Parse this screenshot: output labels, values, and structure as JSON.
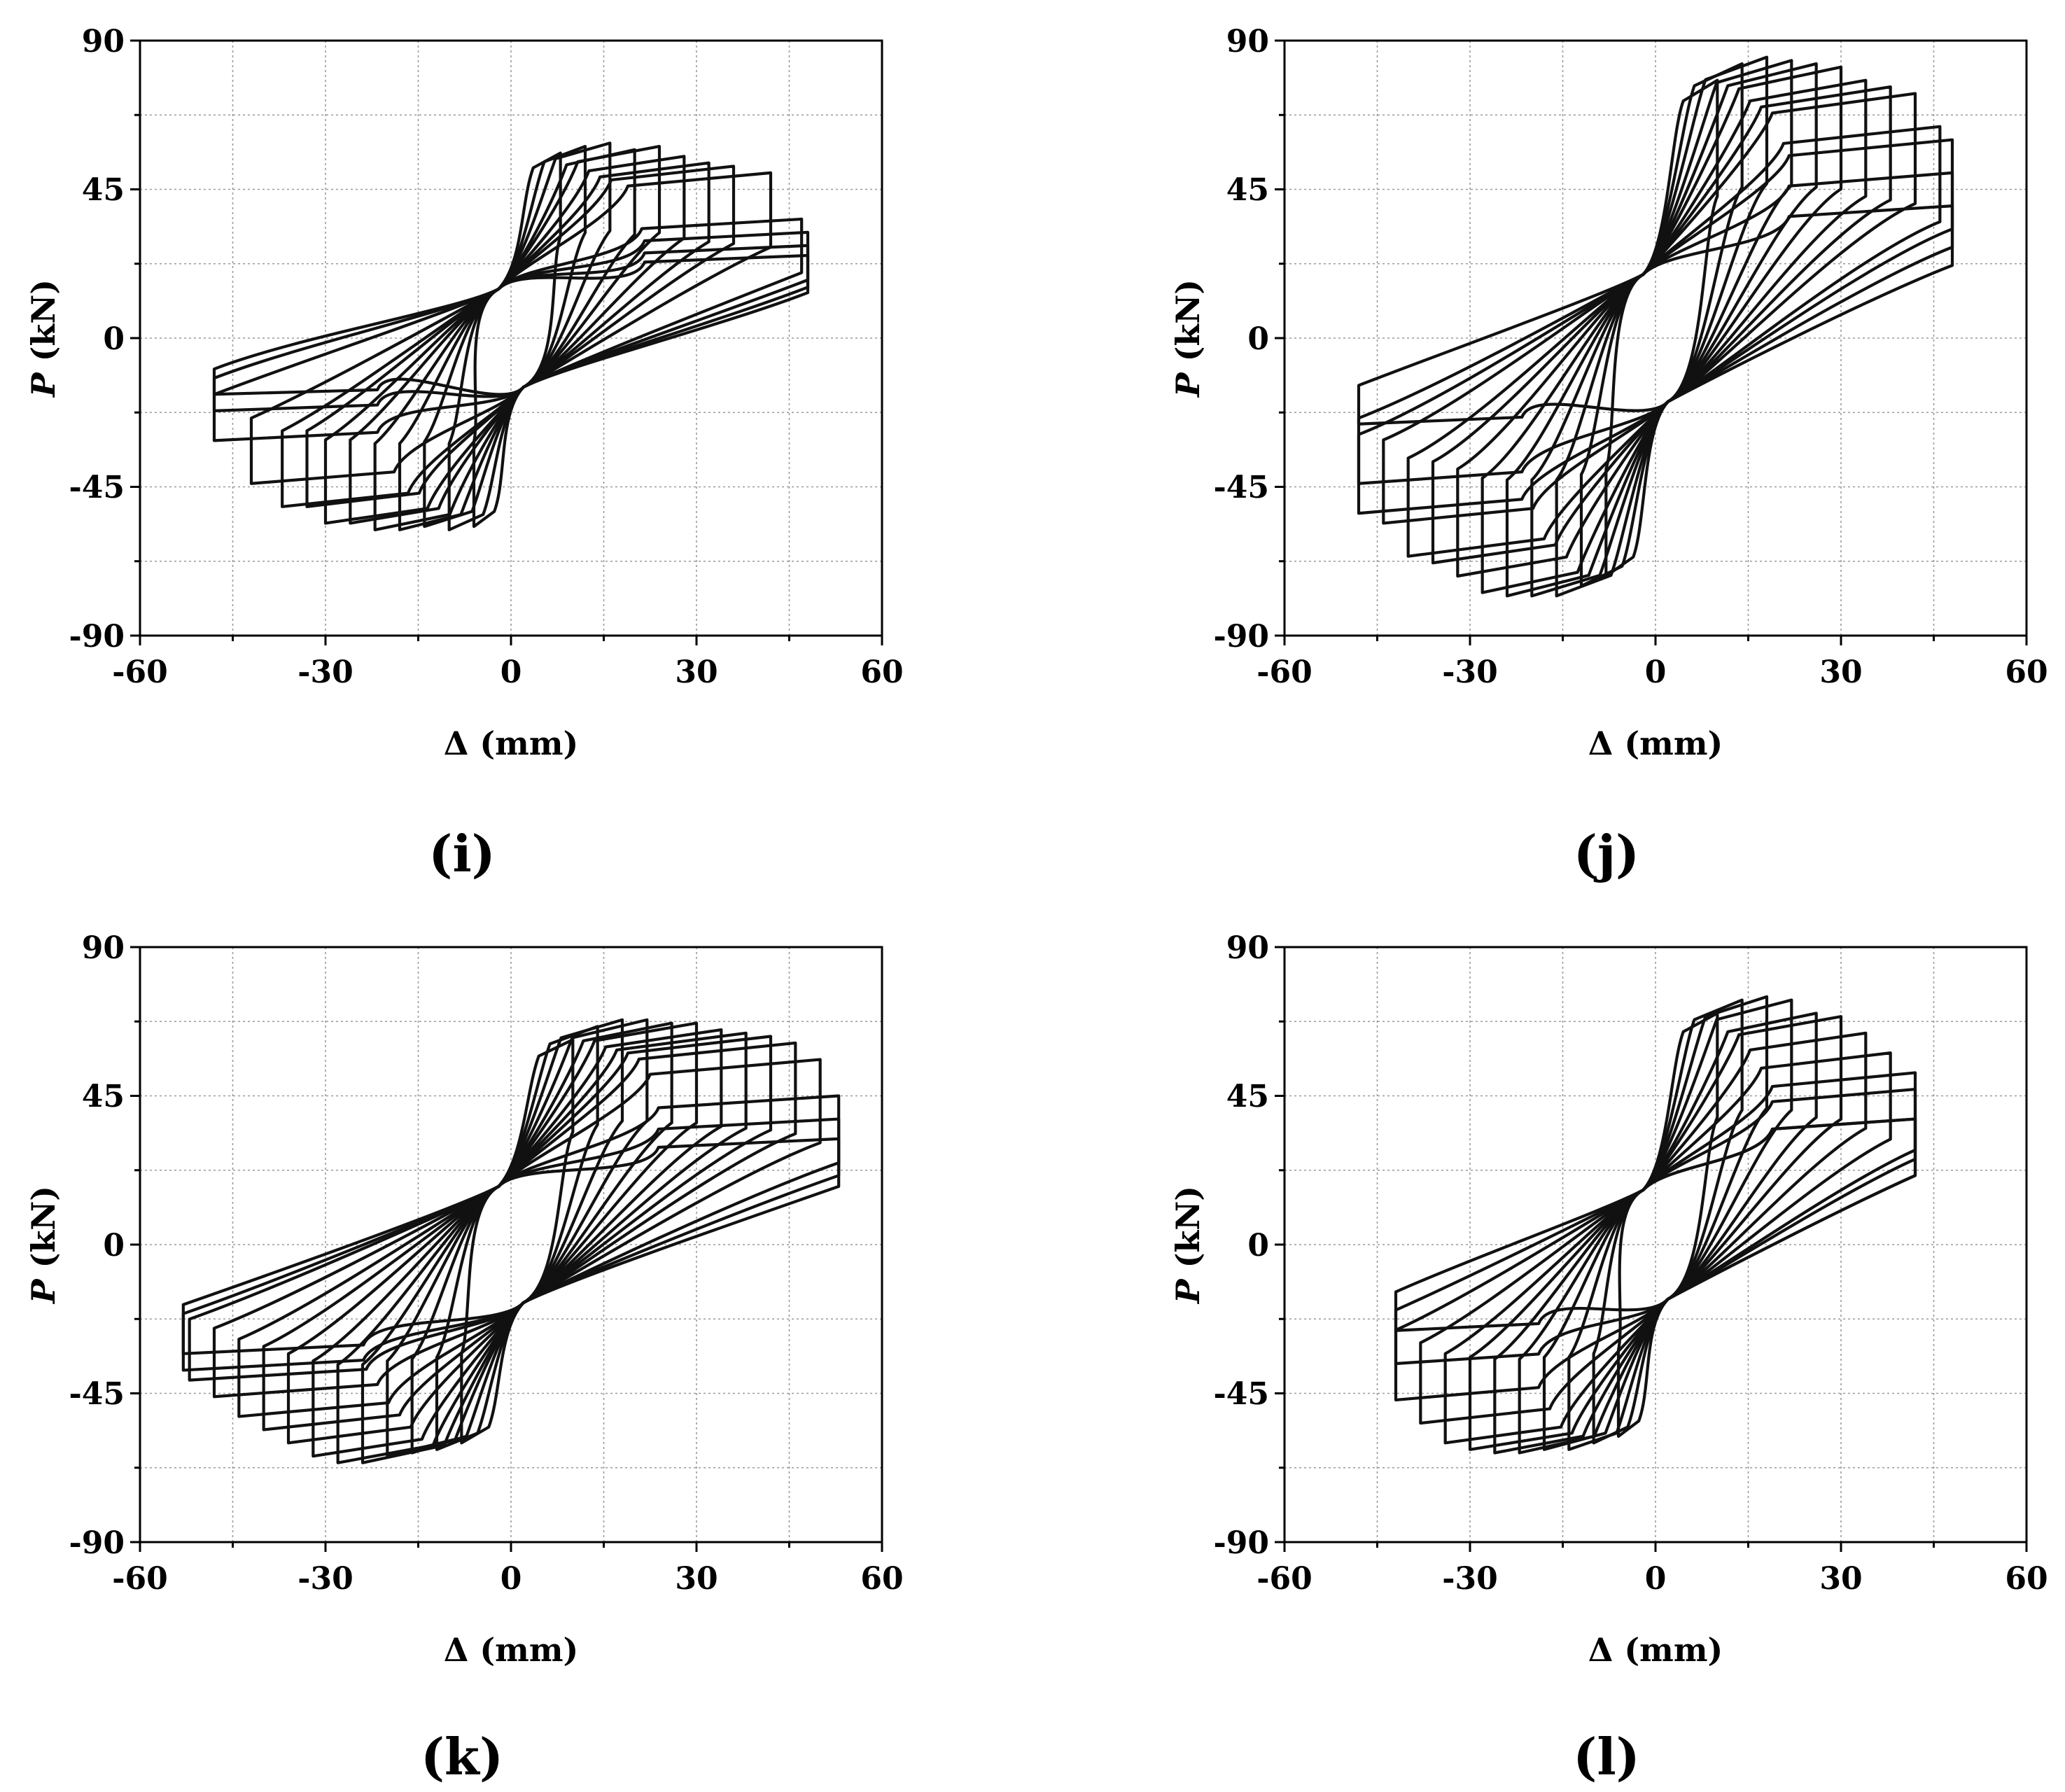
{
  "chart_data": [
    {
      "type": "line",
      "panel_label": "(i)",
      "xlabel_symbol": "Δ",
      "xlabel_unit": "(mm)",
      "ylabel_symbol": "P",
      "ylabel_unit": "(kN)",
      "xlim": [
        -60,
        60
      ],
      "ylim": [
        -90,
        90
      ],
      "xticks": [
        -60,
        -30,
        0,
        30,
        60
      ],
      "yticks": [
        -90,
        -45,
        0,
        45,
        90
      ],
      "grid": true,
      "loop_peaks": [
        [
          8,
          56
        ],
        [
          12,
          58
        ],
        [
          16,
          59
        ],
        [
          20,
          57
        ],
        [
          24,
          58
        ],
        [
          28,
          55
        ],
        [
          32,
          53
        ],
        [
          36,
          52
        ],
        [
          42,
          50
        ],
        [
          47,
          36
        ],
        [
          48,
          32
        ],
        [
          48,
          28
        ],
        [
          48,
          25
        ]
      ],
      "loop_valleys": [
        [
          -6,
          -57
        ],
        [
          -10,
          -58
        ],
        [
          -14,
          -57
        ],
        [
          -18,
          -58
        ],
        [
          -22,
          -58
        ],
        [
          -26,
          -56
        ],
        [
          -30,
          -56
        ],
        [
          -33,
          -51
        ],
        [
          -37,
          -51
        ],
        [
          -42,
          -44
        ],
        [
          -48,
          -31
        ],
        [
          -48,
          -22
        ],
        [
          -48,
          -17
        ]
      ],
      "reload_intercept": 27
    },
    {
      "type": "line",
      "panel_label": "(j)",
      "xlabel_symbol": "Δ",
      "xlabel_unit": "(mm)",
      "ylabel_symbol": "P",
      "ylabel_unit": "(kN)",
      "xlim": [
        -60,
        60
      ],
      "ylim": [
        -90,
        90
      ],
      "xticks": [
        -60,
        -30,
        0,
        30,
        60
      ],
      "yticks": [
        -90,
        -45,
        0,
        45,
        90
      ],
      "grid": true,
      "loop_peaks": [
        [
          10,
          78
        ],
        [
          14,
          83
        ],
        [
          18,
          85
        ],
        [
          22,
          84
        ],
        [
          26,
          83
        ],
        [
          30,
          82
        ],
        [
          34,
          78
        ],
        [
          38,
          76
        ],
        [
          42,
          74
        ],
        [
          46,
          64
        ],
        [
          48,
          60
        ],
        [
          48,
          50
        ],
        [
          48,
          40
        ]
      ],
      "loop_valleys": [
        [
          -8,
          -72
        ],
        [
          -12,
          -75
        ],
        [
          -16,
          -78
        ],
        [
          -20,
          -78
        ],
        [
          -24,
          -78
        ],
        [
          -28,
          -77
        ],
        [
          -32,
          -72
        ],
        [
          -36,
          -68
        ],
        [
          -40,
          -66
        ],
        [
          -44,
          -56
        ],
        [
          -48,
          -53
        ],
        [
          -48,
          -44
        ],
        [
          -48,
          -26
        ]
      ],
      "reload_intercept": 35
    },
    {
      "type": "line",
      "panel_label": "(k)",
      "xlabel_symbol": "Δ",
      "xlabel_unit": "(mm)",
      "ylabel_symbol": "P",
      "ylabel_unit": "(kN)",
      "xlim": [
        -60,
        60
      ],
      "ylim": [
        -90,
        90
      ],
      "xticks": [
        -60,
        -30,
        0,
        30,
        60
      ],
      "yticks": [
        -90,
        -45,
        0,
        45,
        90
      ],
      "grid": true,
      "loop_peaks": [
        [
          10,
          62
        ],
        [
          14,
          66
        ],
        [
          18,
          68
        ],
        [
          22,
          68
        ],
        [
          26,
          67
        ],
        [
          30,
          67
        ],
        [
          34,
          65
        ],
        [
          38,
          64
        ],
        [
          42,
          63
        ],
        [
          46,
          61
        ],
        [
          50,
          56
        ],
        [
          53,
          45
        ],
        [
          53,
          38
        ],
        [
          53,
          32
        ]
      ],
      "loop_valleys": [
        [
          -8,
          -60
        ],
        [
          -12,
          -62
        ],
        [
          -16,
          -63
        ],
        [
          -20,
          -64
        ],
        [
          -24,
          -66
        ],
        [
          -28,
          -66
        ],
        [
          -32,
          -64
        ],
        [
          -36,
          -60
        ],
        [
          -40,
          -56
        ],
        [
          -44,
          -52
        ],
        [
          -48,
          -46
        ],
        [
          -52,
          -41
        ],
        [
          -53,
          -38
        ],
        [
          -53,
          -33
        ]
      ],
      "reload_intercept": 32
    },
    {
      "type": "line",
      "panel_label": "(l)",
      "xlabel_symbol": "Δ",
      "xlabel_unit": "(mm)",
      "ylabel_symbol": "P",
      "ylabel_unit": "(kN)",
      "xlim": [
        -60,
        60
      ],
      "ylim": [
        -90,
        90
      ],
      "xticks": [
        -60,
        -30,
        0,
        30,
        60
      ],
      "yticks": [
        -90,
        -45,
        0,
        45,
        90
      ],
      "grid": true,
      "loop_peaks": [
        [
          10,
          70
        ],
        [
          14,
          74
        ],
        [
          18,
          75
        ],
        [
          22,
          74
        ],
        [
          26,
          70
        ],
        [
          30,
          69
        ],
        [
          34,
          64
        ],
        [
          38,
          58
        ],
        [
          42,
          52
        ],
        [
          42,
          47
        ],
        [
          42,
          38
        ]
      ],
      "loop_valleys": [
        [
          -6,
          -58
        ],
        [
          -10,
          -60
        ],
        [
          -14,
          -62
        ],
        [
          -18,
          -62
        ],
        [
          -22,
          -63
        ],
        [
          -26,
          -63
        ],
        [
          -30,
          -62
        ],
        [
          -34,
          -60
        ],
        [
          -38,
          -54
        ],
        [
          -42,
          -47
        ],
        [
          -42,
          -36
        ],
        [
          -42,
          -26
        ]
      ],
      "reload_intercept": 30
    }
  ]
}
